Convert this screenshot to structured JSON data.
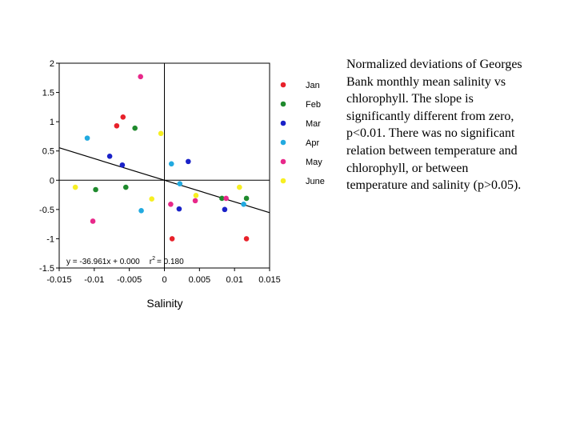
{
  "caption": "Normalized deviations of Georges Bank monthly mean salinity vs chlorophyll. The slope is significantly different from zero, p<0.01. There was no significant relation between temperature and chlorophyll, or between temperature and salinity (p>0.05).",
  "chart_data": {
    "type": "scatter",
    "title": "",
    "xlabel": "Salinity",
    "ylabel": "",
    "xlim": [
      -0.015,
      0.015
    ],
    "ylim": [
      -1.5,
      2
    ],
    "xticks": [
      "-0.015",
      "-0.01",
      "-0.005",
      "0",
      "0.005",
      "0.01",
      "0.015"
    ],
    "yticks": [
      "2",
      "1.5",
      "1",
      "0.5",
      "0",
      "-0.5",
      "-1",
      "-1.5"
    ],
    "grid": false,
    "legend_position": "right",
    "series": [
      {
        "name": "Jan",
        "color": "#e8212a",
        "points": [
          [
            -0.0059,
            1.08
          ],
          [
            -0.0068,
            0.93
          ],
          [
            0.0011,
            -1.0
          ],
          [
            0.0117,
            -1.0
          ]
        ]
      },
      {
        "name": "Feb",
        "color": "#1f8a2d",
        "points": [
          [
            -0.0042,
            0.89
          ],
          [
            -0.0098,
            -0.16
          ],
          [
            -0.0055,
            -0.12
          ],
          [
            0.0082,
            -0.31
          ],
          [
            0.0117,
            -0.31
          ]
        ]
      },
      {
        "name": "Mar",
        "color": "#1a22c8",
        "points": [
          [
            -0.0078,
            0.41
          ],
          [
            -0.006,
            0.26
          ],
          [
            0.0034,
            0.32
          ],
          [
            0.0021,
            -0.49
          ],
          [
            0.0086,
            -0.5
          ]
        ]
      },
      {
        "name": "Apr",
        "color": "#22aae0",
        "points": [
          [
            -0.011,
            0.72
          ],
          [
            0.001,
            0.28
          ],
          [
            0.0022,
            -0.06
          ],
          [
            -0.0033,
            -0.52
          ],
          [
            0.0113,
            -0.41
          ]
        ]
      },
      {
        "name": "May",
        "color": "#e8288a",
        "points": [
          [
            -0.0034,
            1.77
          ],
          [
            -0.0102,
            -0.7
          ],
          [
            0.0009,
            -0.41
          ],
          [
            0.0044,
            -0.35
          ],
          [
            0.0088,
            -0.31
          ]
        ]
      },
      {
        "name": "June",
        "color": "#f7ef22",
        "points": [
          [
            -0.0005,
            0.8
          ],
          [
            -0.0127,
            -0.12
          ],
          [
            -0.0018,
            -0.32
          ],
          [
            0.0045,
            -0.26
          ],
          [
            0.0107,
            -0.12
          ]
        ]
      }
    ],
    "regression": {
      "slope": -36.961,
      "intercept": 0.0,
      "x_range": [
        -0.015,
        0.015
      ]
    },
    "annotation": {
      "equation": "y =  -36.961x + 0.000",
      "r2_label": "r",
      "r2_exponent": "2",
      "r2_value": "= 0.180"
    }
  }
}
